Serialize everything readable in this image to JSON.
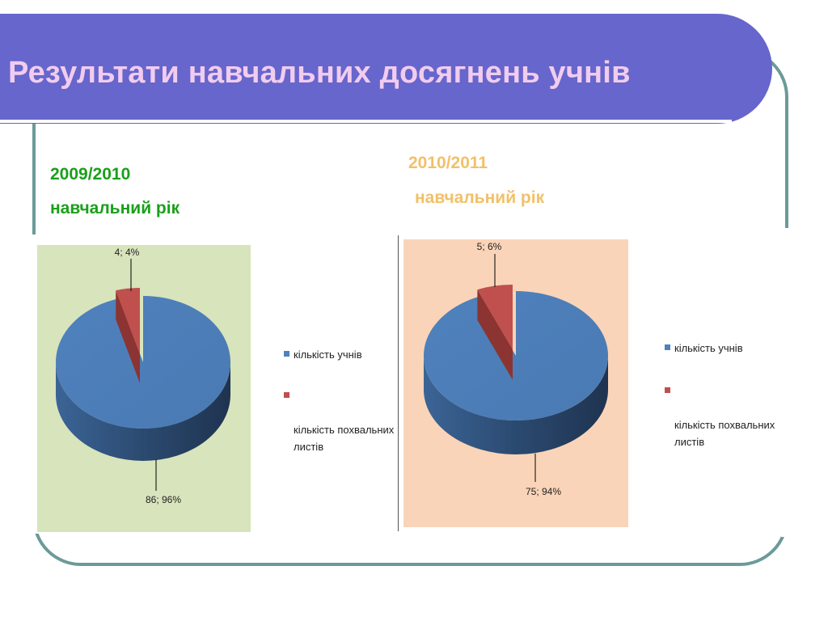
{
  "slide": {
    "title": "Результати навчальних досягнень учнів"
  },
  "headings": {
    "year1_line1": "2009/2010",
    "year1_line2": "навчальний рік",
    "year2_line1": "2010/2011",
    "year2_line2": "навчальний рік"
  },
  "colors": {
    "title_bar": "#6666cc",
    "title_text": "#f2ccee",
    "frame": "#6b9a9a",
    "year1_heading": "#1aa01a",
    "year2_heading": "#f2c069",
    "chart1_bg": "#d8e4bc",
    "chart2_bg": "#fad4b8",
    "series_blue": "#4f81bd",
    "series_red": "#c0504d"
  },
  "chart_data": [
    {
      "type": "pie",
      "style": "3d-exploded",
      "slices": [
        {
          "name": "кількість учнів",
          "value": 86,
          "percent": 96,
          "label": "86; 96%"
        },
        {
          "name": "кількість похвальних листів",
          "value": 4,
          "percent": 4,
          "label": "4; 4%"
        }
      ],
      "legend": [
        "кількість учнів",
        "кількість похвальних\nлистів"
      ],
      "legend_position": "right"
    },
    {
      "type": "pie",
      "style": "3d-exploded",
      "slices": [
        {
          "name": "кількість учнів",
          "value": 75,
          "percent": 94,
          "label": "75; 94%"
        },
        {
          "name": "кількість похвальних листів",
          "value": 5,
          "percent": 6,
          "label": "5; 6%"
        }
      ],
      "legend": [
        "кількість учнів",
        "кількість похвальних\nлистів"
      ],
      "legend_position": "right"
    }
  ]
}
